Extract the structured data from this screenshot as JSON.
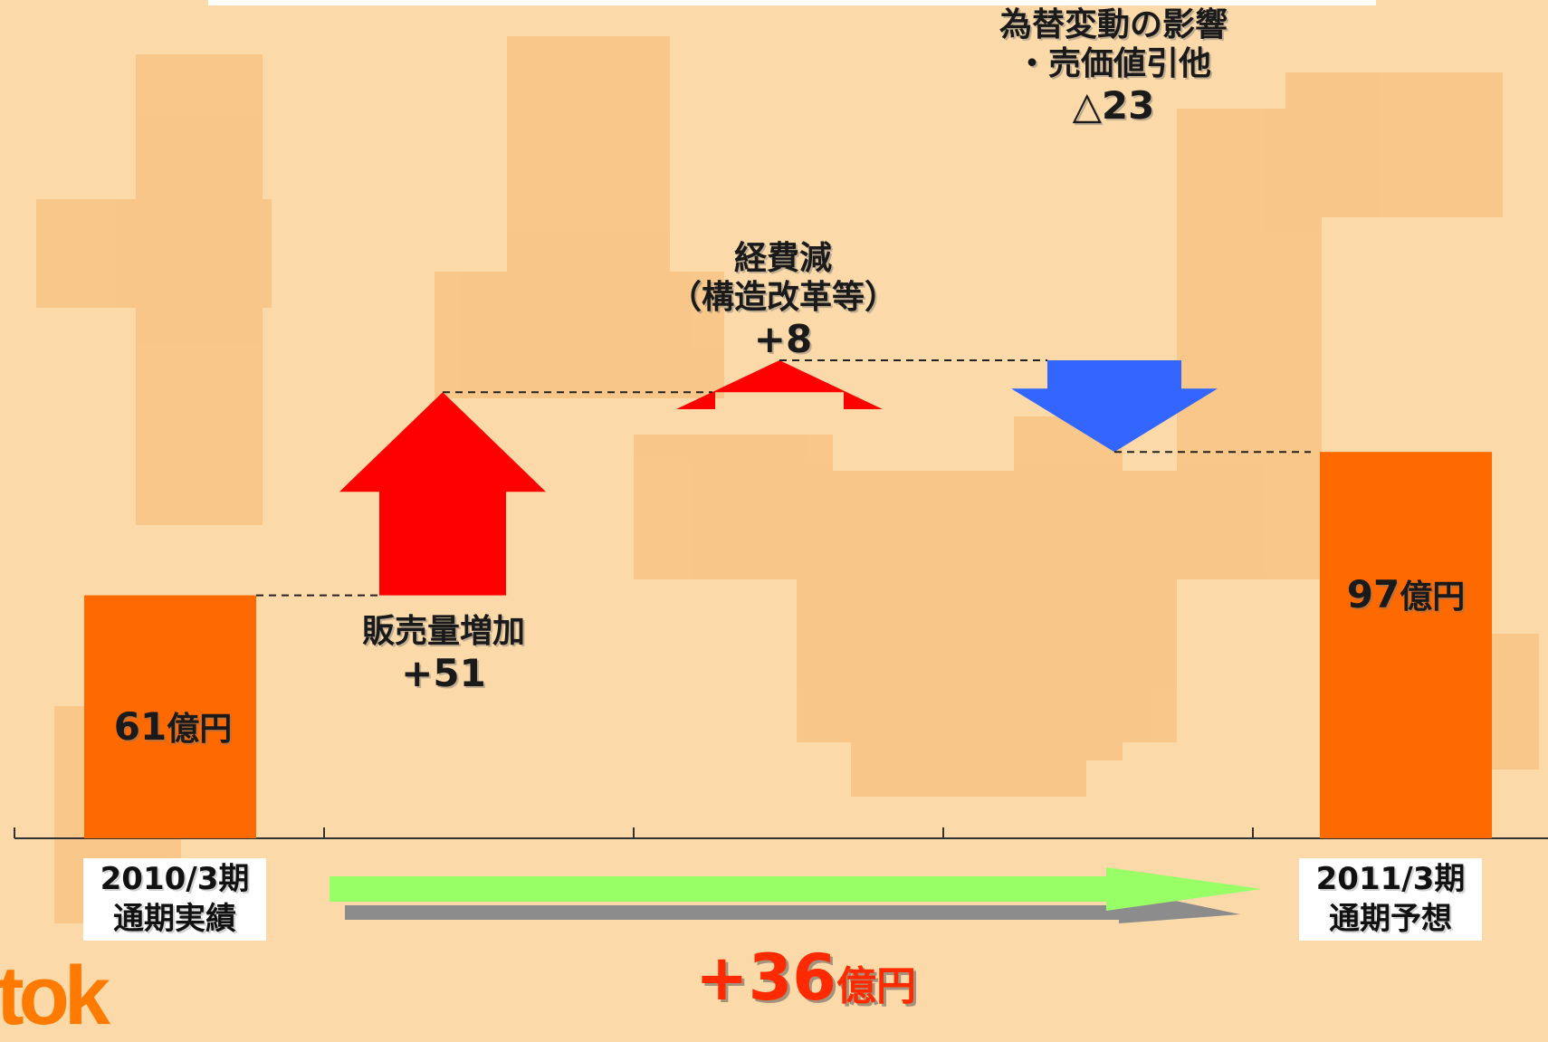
{
  "chart_data": {
    "type": "bar",
    "categories": [
      "2010/3期\n通期実績",
      "2011/3期\n通期予想"
    ],
    "start": {
      "category": "2010/3期 通期実績",
      "value": 61,
      "value_text": "61",
      "unit": "億円"
    },
    "end": {
      "category": "2011/3期 通期予想",
      "value": 97,
      "value_text": "97",
      "unit": "億円"
    },
    "steps": [
      {
        "label_lines": [
          "販売量増加"
        ],
        "value": 51,
        "value_text": "+51",
        "direction": "up"
      },
      {
        "label_lines": [
          "経費減",
          "（構造改革等）"
        ],
        "value": 8,
        "value_text": "+8",
        "direction": "up"
      },
      {
        "label_lines": [
          "為替変動の影響",
          "・売価値引他"
        ],
        "value": -23,
        "value_text": "△23",
        "direction": "down"
      }
    ],
    "total_change": {
      "value": 36,
      "text": "+36",
      "unit": "億円"
    },
    "ylim": [
      0,
      130
    ],
    "grid": false,
    "title": "",
    "xlabel": "",
    "ylabel": ""
  },
  "colors": {
    "background": "#fcd9a8",
    "background_shapes": "#f6b870",
    "bar": "#ff6a00",
    "increase_arrow": "#ff0000",
    "decrease_arrow": "#3366ff",
    "total_arrow": "#99ff66",
    "total_arrow_shadow": "#8c8c8c",
    "total_text": "#ff2a00",
    "axis": "#333333"
  },
  "logo": {
    "text": "tok"
  }
}
